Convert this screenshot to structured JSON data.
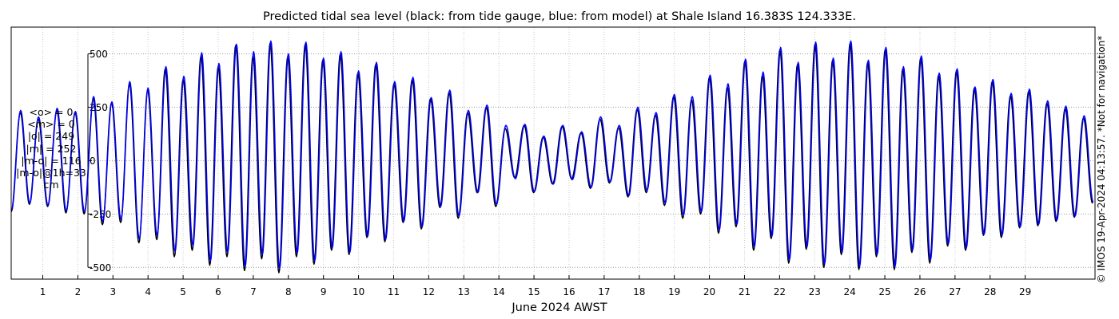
{
  "chart_data": {
    "type": "line",
    "title": "Predicted tidal sea level (black: from tide gauge, blue: from model) at Shale Island 16.383S 124.333E.",
    "xlabel": "June 2024 AWST",
    "ylabel": "",
    "xlim": [
      0.1,
      30.99
    ],
    "ylim": [
      -555,
      625
    ],
    "x_ticks": [
      1,
      2,
      3,
      4,
      5,
      6,
      7,
      8,
      9,
      10,
      11,
      12,
      13,
      14,
      15,
      16,
      17,
      18,
      19,
      20,
      21,
      22,
      23,
      24,
      25,
      26,
      27,
      28,
      29
    ],
    "x_tick_labels": [
      "1",
      "2",
      "3",
      "4",
      "5",
      "6",
      "7",
      "8",
      "9",
      "10",
      "11",
      "12",
      "13",
      "14",
      "15",
      "16",
      "17",
      "18",
      "19",
      "20",
      "21",
      "22",
      "23",
      "24",
      "25",
      "26",
      "27",
      "28",
      "29"
    ],
    "y_ticks": [
      -500,
      -250,
      0,
      250,
      500
    ],
    "y_tick_labels": [
      "-500",
      "-250",
      "0",
      "250",
      "500"
    ],
    "grid": true,
    "series": [
      {
        "name": "tide gauge",
        "color": "#000000",
        "high_water_times": [
          0.36,
          0.87,
          1.4,
          1.92,
          2.44,
          2.96,
          3.47,
          3.99,
          4.49,
          5.0,
          5.51,
          6.0,
          6.5,
          6.99,
          7.48,
          7.98,
          8.48,
          8.98,
          9.48,
          9.98,
          10.49,
          11.01,
          11.53,
          12.05,
          12.58,
          13.11,
          13.64,
          14.18,
          14.72,
          15.26,
          15.8,
          16.34,
          16.88,
          17.41,
          17.94,
          18.46,
          18.98,
          19.49,
          20.0,
          20.51,
          21.01,
          21.51,
          22.01,
          22.51,
          23.01,
          23.51,
          24.01,
          24.51,
          25.01,
          25.51,
          26.02,
          26.53,
          27.04,
          27.55,
          28.06,
          28.58,
          29.1,
          29.62,
          30.14,
          30.66
        ],
        "high_water_levels": [
          225,
          195,
          235,
          225,
          290,
          270,
          360,
          330,
          430,
          380,
          490,
          440,
          540,
          490,
          550,
          485,
          545,
          470,
          500,
          410,
          450,
          360,
          380,
          290,
          320,
          225,
          250,
          150,
          165,
          110,
          160,
          130,
          195,
          155,
          240,
          215,
          300,
          285,
          390,
          345,
          465,
          400,
          520,
          450,
          545,
          470,
          550,
          460,
          520,
          430,
          480,
          400,
          420,
          340,
          370,
          305,
          325,
          270,
          245,
          200
        ],
        "low_water_times": [
          0.1,
          0.62,
          1.14,
          1.66,
          2.18,
          2.7,
          3.22,
          3.74,
          4.25,
          4.75,
          5.26,
          5.76,
          6.25,
          6.75,
          7.24,
          7.73,
          8.23,
          8.73,
          9.23,
          9.73,
          10.24,
          10.75,
          11.27,
          11.79,
          12.32,
          12.84,
          13.38,
          13.91,
          14.45,
          14.99,
          15.53,
          16.07,
          16.61,
          17.15,
          17.68,
          18.2,
          18.72,
          19.24,
          19.75,
          20.26,
          20.76,
          21.26,
          21.76,
          22.26,
          22.76,
          23.26,
          23.76,
          24.26,
          24.76,
          25.27,
          25.77,
          26.28,
          26.79,
          27.3,
          27.81,
          28.32,
          28.84,
          29.36,
          29.88,
          30.4,
          30.92
        ],
        "low_water_levels": [
          -240,
          -205,
          -215,
          -245,
          -250,
          -300,
          -290,
          -385,
          -370,
          -450,
          -420,
          -490,
          -450,
          -515,
          -460,
          -525,
          -450,
          -485,
          -420,
          -440,
          -360,
          -380,
          -290,
          -320,
          -220,
          -270,
          -150,
          -215,
          -80,
          -150,
          -110,
          -85,
          -130,
          -105,
          -170,
          -150,
          -210,
          -270,
          -250,
          -340,
          -310,
          -420,
          -365,
          -480,
          -415,
          -500,
          -440,
          -510,
          -450,
          -510,
          -430,
          -480,
          -400,
          -420,
          -350,
          -360,
          -315,
          -305,
          -285,
          -265,
          -200
        ]
      },
      {
        "name": "model",
        "color": "#0000ff",
        "high_water_times": [
          0.37,
          0.88,
          1.41,
          1.93,
          2.45,
          2.97,
          3.48,
          4.0,
          4.51,
          5.02,
          5.53,
          6.02,
          6.52,
          7.01,
          7.5,
          8.0,
          8.5,
          9.0,
          9.5,
          10.0,
          10.51,
          11.03,
          11.55,
          12.07,
          12.6,
          13.13,
          13.66,
          14.2,
          14.74,
          15.28,
          15.82,
          16.36,
          16.9,
          17.43,
          17.96,
          18.48,
          19.0,
          19.51,
          20.02,
          20.53,
          21.03,
          21.53,
          22.03,
          22.53,
          23.03,
          23.53,
          24.03,
          24.53,
          25.03,
          25.53,
          26.04,
          26.55,
          27.06,
          27.57,
          28.08,
          28.6,
          29.12,
          29.64,
          30.16,
          30.68
        ],
        "high_water_levels": [
          235,
          205,
          245,
          230,
          300,
          275,
          370,
          340,
          440,
          395,
          505,
          455,
          545,
          510,
          560,
          500,
          555,
          480,
          510,
          420,
          460,
          370,
          390,
          295,
          330,
          235,
          260,
          165,
          170,
          115,
          165,
          135,
          205,
          165,
          250,
          225,
          310,
          300,
          400,
          360,
          475,
          415,
          530,
          460,
          555,
          480,
          560,
          470,
          530,
          440,
          490,
          410,
          430,
          345,
          380,
          315,
          335,
          280,
          255,
          210
        ],
        "low_water_times": [
          0.11,
          0.63,
          1.15,
          1.67,
          2.19,
          2.71,
          3.23,
          3.75,
          4.26,
          4.77,
          5.28,
          5.78,
          6.27,
          6.77,
          7.26,
          7.75,
          8.25,
          8.75,
          9.25,
          9.75,
          10.26,
          10.77,
          11.29,
          11.81,
          12.34,
          12.86,
          13.4,
          13.93,
          14.47,
          15.01,
          15.55,
          16.09,
          16.63,
          17.17,
          17.7,
          18.22,
          18.74,
          19.26,
          19.77,
          20.28,
          20.78,
          21.28,
          21.78,
          22.28,
          22.78,
          23.28,
          23.78,
          24.28,
          24.78,
          25.29,
          25.79,
          26.3,
          26.81,
          27.32,
          27.83,
          28.34,
          28.86,
          29.38,
          29.9,
          30.42,
          30.94
        ],
        "low_water_levels": [
          -235,
          -200,
          -210,
          -235,
          -240,
          -285,
          -275,
          -365,
          -350,
          -425,
          -400,
          -470,
          -430,
          -495,
          -440,
          -505,
          -435,
          -470,
          -410,
          -430,
          -355,
          -370,
          -285,
          -310,
          -215,
          -260,
          -150,
          -205,
          -85,
          -145,
          -110,
          -90,
          -125,
          -100,
          -165,
          -140,
          -200,
          -255,
          -240,
          -325,
          -300,
          -405,
          -355,
          -465,
          -405,
          -485,
          -430,
          -495,
          -440,
          -495,
          -420,
          -465,
          -390,
          -410,
          -345,
          -350,
          -310,
          -300,
          -280,
          -260,
          -195
        ]
      }
    ]
  },
  "stats_lines": [
    "<o> = 0",
    "<m> = 0",
    "|o| = 249",
    "|m| = 252",
    "|m-o| = 116",
    "|m-o|@1h=33",
    "cm"
  ],
  "side_note": "© IMOS 19-Apr-2024 04:13:57. *Not for navigation*"
}
